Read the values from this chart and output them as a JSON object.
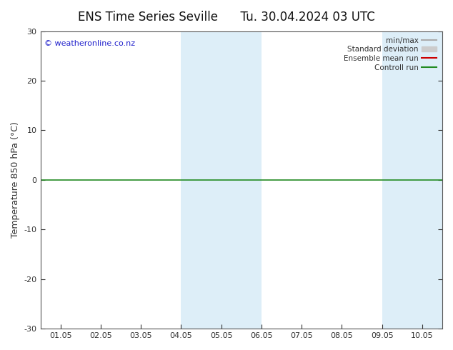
{
  "title": "ENS Time Series Seville      Tu. 30.04.2024 03 UTC",
  "ylabel": "Temperature 850 hPa (°C)",
  "watermark": "© weatheronline.co.nz",
  "ylim": [
    -30,
    30
  ],
  "yticks": [
    -30,
    -20,
    -10,
    0,
    10,
    20,
    30
  ],
  "xtick_labels": [
    "01.05",
    "02.05",
    "03.05",
    "04.05",
    "05.05",
    "06.05",
    "07.05",
    "08.05",
    "09.05",
    "10.05"
  ],
  "n_xticks": 10,
  "shaded_bands": [
    {
      "xstart": 3.5,
      "xend": 5.5,
      "color": "#ddeef8"
    },
    {
      "xstart": 8.5,
      "xend": 10.5,
      "color": "#ddeef8"
    }
  ],
  "hline_y": 0,
  "hline_color": "#228B22",
  "legend_entries": [
    {
      "label": "min/max",
      "color": "#aaaaaa",
      "lw": 1.5,
      "style": "simple"
    },
    {
      "label": "Standard deviation",
      "color": "#cccccc",
      "lw": 6,
      "style": "band"
    },
    {
      "label": "Ensemble mean run",
      "color": "#cc0000",
      "lw": 1.5,
      "style": "simple"
    },
    {
      "label": "Controll run",
      "color": "#228B22",
      "lw": 1.5,
      "style": "simple"
    }
  ],
  "bg_color": "#ffffff",
  "plot_bg_color": "#ffffff",
  "spine_color": "#555555",
  "tick_color": "#333333",
  "title_fontsize": 12,
  "label_fontsize": 9,
  "tick_fontsize": 8,
  "watermark_color": "#2222cc",
  "watermark_fontsize": 8,
  "xlim_left": -0.5,
  "xlim_right": 9.5
}
